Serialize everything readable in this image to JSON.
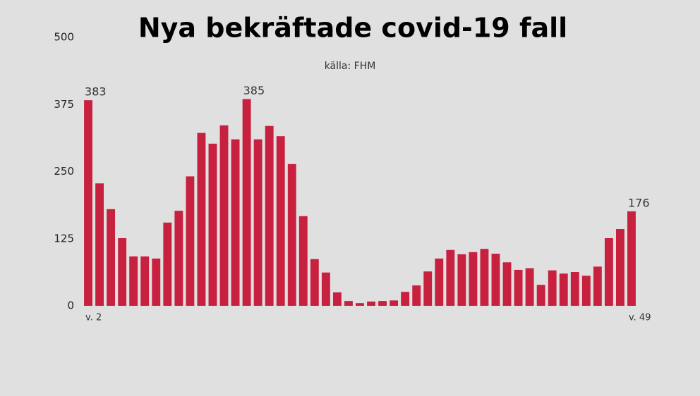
{
  "chart_data": {
    "type": "bar",
    "title": "Nya bekräftade covid-19 fall",
    "subtitle": "källa: FHM",
    "categories": [
      "v. 2",
      null,
      null,
      null,
      null,
      null,
      null,
      null,
      null,
      null,
      null,
      null,
      null,
      null,
      null,
      null,
      null,
      null,
      null,
      null,
      null,
      null,
      null,
      null,
      null,
      null,
      null,
      null,
      null,
      null,
      null,
      null,
      null,
      null,
      null,
      null,
      null,
      null,
      null,
      null,
      null,
      null,
      null,
      null,
      null,
      null,
      null,
      null,
      "v. 49"
    ],
    "values": [
      383,
      228,
      180,
      126,
      92,
      92,
      88,
      155,
      177,
      241,
      322,
      302,
      336,
      310,
      385,
      310,
      335,
      316,
      264,
      167,
      87,
      62,
      25,
      9,
      5,
      8,
      9,
      10,
      26,
      38,
      64,
      88,
      104,
      96,
      100,
      106,
      97,
      81,
      67,
      70,
      39,
      66,
      60,
      63,
      56,
      73,
      126,
      143,
      176
    ],
    "value_labels": [
      "383",
      null,
      null,
      null,
      null,
      null,
      null,
      null,
      null,
      null,
      null,
      null,
      null,
      null,
      "385",
      null,
      null,
      null,
      null,
      null,
      null,
      null,
      null,
      null,
      null,
      null,
      null,
      null,
      null,
      null,
      null,
      null,
      null,
      null,
      null,
      null,
      null,
      null,
      null,
      null,
      null,
      null,
      null,
      null,
      null,
      null,
      null,
      null,
      "176"
    ],
    "color": "#c8203f",
    "ylim": [
      0,
      500
    ],
    "yticks": [
      0,
      125,
      250,
      375,
      500
    ],
    "grid": false
  }
}
